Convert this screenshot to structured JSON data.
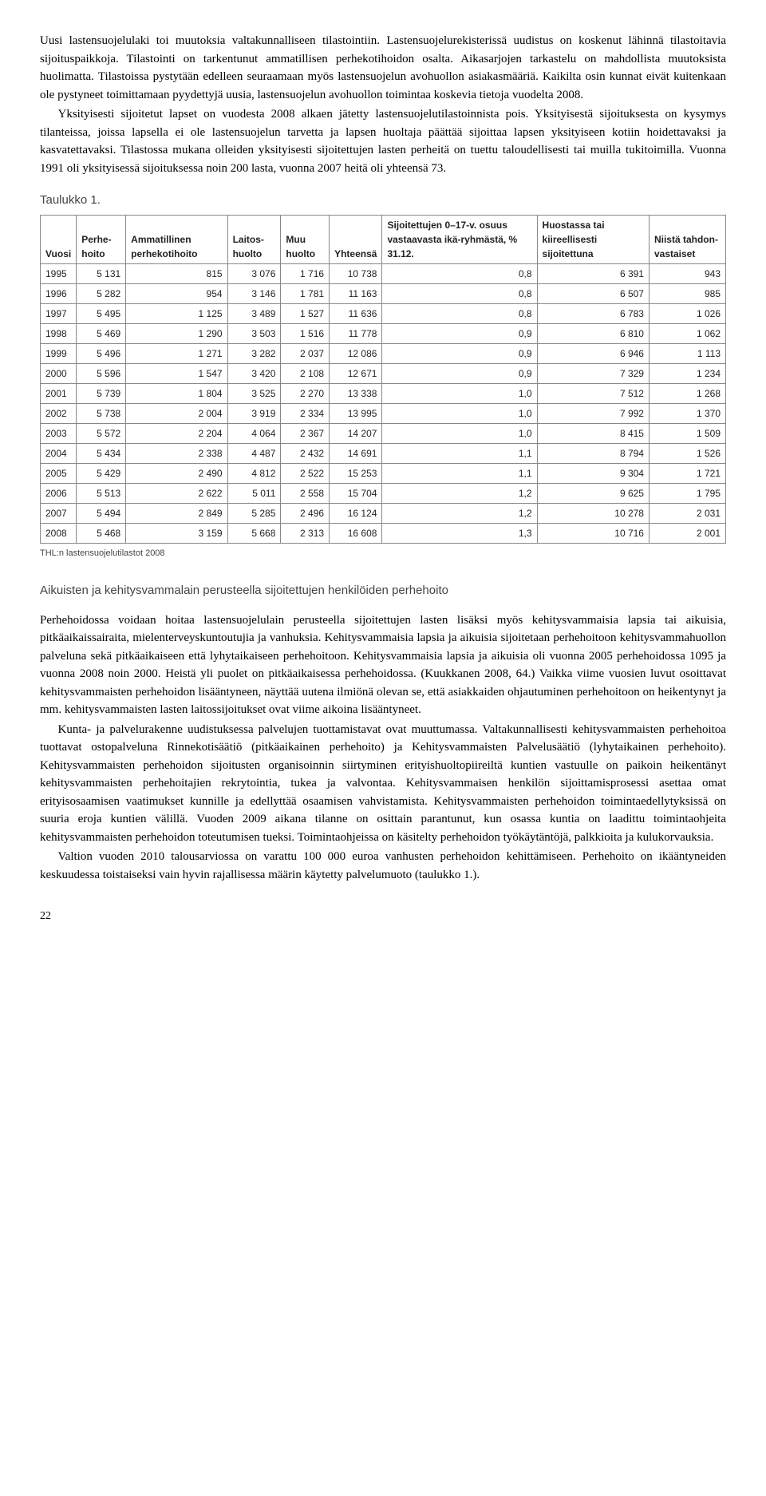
{
  "paragraphs": {
    "p1": "Uusi lastensuojelulaki toi muutoksia valtakunnalliseen tilastointiin. Lastensuojelurekisterissä uudistus on koskenut lähinnä tilastoitavia sijoituspaikkoja. Tilastointi on tarkentunut ammatillisen perhekotihoidon osalta. Aikasarjojen tarkastelu on mahdollista muutoksista huolimatta. Tilastoissa pystytään edelleen seuraamaan myös lastensuojelun avohuollon asiakasmääriä. Kaikilta osin kunnat eivät kuitenkaan ole pystyneet toimittamaan pyydettyjä uusia, lastensuojelun avohuollon toimintaa koskevia tietoja vuodelta 2008.",
    "p2": "Yksityisesti sijoitetut lapset on vuodesta 2008 alkaen jätetty lastensuojelutilastoinnista pois. Yksityisestä sijoituksesta on kysymys tilanteissa, joissa lapsella ei ole lastensuojelun tarvetta ja lapsen huoltaja päättää sijoittaa lapsen yksityiseen kotiin hoidettavaksi ja kasvatettavaksi. Tilastossa mukana olleiden yksityisesti sijoitettujen lasten perheitä on tuettu taloudellisesti tai muilla tukitoimilla. Vuonna 1991 oli yksityisessä sijoituksessa noin 200 lasta, vuonna 2007 heitä oli yhteensä 73.",
    "p3": "Perhehoidossa voidaan hoitaa lastensuojelulain perusteella sijoitettujen lasten lisäksi myös kehitysvammaisia lapsia tai aikuisia, pitkäaikaissairaita, mielenterveyskuntoutujia ja vanhuksia. Kehitysvammaisia lapsia ja aikuisia sijoitetaan perhehoitoon kehitysvammahuollon palveluna sekä pitkäaikaiseen että lyhytaikaiseen perhehoitoon. Kehitysvammaisia lapsia ja aikuisia oli vuonna 2005 perhehoidossa 1095 ja vuonna 2008 noin 2000. Heistä yli puolet on pitkäaikaisessa perhehoidossa. (Kuukkanen 2008, 64.) Vaikka viime vuosien luvut osoittavat kehitysvammaisten perhehoidon lisääntyneen, näyttää uutena ilmiönä olevan se, että asiakkaiden ohjautuminen perhehoitoon on heikentynyt ja mm. kehitysvammaisten lasten laitossijoitukset ovat viime aikoina lisääntyneet.",
    "p4": "Kunta- ja palvelurakenne uudistuksessa palvelujen tuottamistavat ovat muuttumassa. Valtakunnallisesti kehitysvammaisten perhehoitoa tuottavat ostopalveluna Rinnekotisäätiö (pitkäaikainen perhehoito) ja Kehitysvammaisten Palvelusäätiö (lyhytaikainen perhehoito). Kehitysvammaisten perhehoidon sijoitusten organisoinnin siirtyminen erityishuoltopiireiltä kuntien vastuulle on paikoin heikentänyt kehitysvammaisten perhehoitajien rekrytointia, tukea ja valvontaa. Kehitysvammaisen henkilön sijoittamisprosessi asettaa omat erityisosaamisen vaatimukset kunnille ja edellyttää osaamisen vahvistamista. Kehitysvammaisten perhehoidon toimintaedellytyksissä on suuria eroja kuntien välillä. Vuoden 2009 aikana tilanne on osittain parantunut, kun osassa kuntia on laadittu toimintaohjeita kehitysvammaisten perhehoidon toteutumisen tueksi. Toimintaohjeissa on käsitelty perhehoidon työkäytäntöjä, palkkioita ja kulukorvauksia.",
    "p5": "Valtion vuoden 2010 talousarviossa on varattu 100 000 euroa vanhusten perhehoidon kehittämiseen. Perhehoito on ikääntyneiden keskuudessa toistaiseksi vain hyvin rajallisessa määrin käytetty palvelumuoto (taulukko 1.)."
  },
  "table": {
    "title": "Taulukko 1.",
    "columns": [
      "Vuosi",
      "Perhe-hoito",
      "Ammatillinen perhekotihoito",
      "Laitos-huolto",
      "Muu huolto",
      "Yhteensä",
      "Sijoitettujen 0–17-v. osuus vastaavasta ikä-ryhmästä, % 31.12.",
      "Huostassa tai kiireellisesti sijoitettuna",
      "Niistä tahdon-vastaiset"
    ],
    "rows": [
      [
        "1995",
        "5 131",
        "815",
        "3 076",
        "1 716",
        "10 738",
        "0,8",
        "6 391",
        "943"
      ],
      [
        "1996",
        "5 282",
        "954",
        "3 146",
        "1 781",
        "11 163",
        "0,8",
        "6 507",
        "985"
      ],
      [
        "1997",
        "5 495",
        "1 125",
        "3 489",
        "1 527",
        "11 636",
        "0,8",
        "6 783",
        "1 026"
      ],
      [
        "1998",
        "5 469",
        "1 290",
        "3 503",
        "1 516",
        "11 778",
        "0,9",
        "6 810",
        "1 062"
      ],
      [
        "1999",
        "5 496",
        "1 271",
        "3 282",
        "2 037",
        "12 086",
        "0,9",
        "6 946",
        "1 113"
      ],
      [
        "2000",
        "5 596",
        "1 547",
        "3 420",
        "2 108",
        "12 671",
        "0,9",
        "7 329",
        "1 234"
      ],
      [
        "2001",
        "5 739",
        "1 804",
        "3 525",
        "2 270",
        "13 338",
        "1,0",
        "7 512",
        "1 268"
      ],
      [
        "2002",
        "5 738",
        "2 004",
        "3 919",
        "2 334",
        "13 995",
        "1,0",
        "7 992",
        "1 370"
      ],
      [
        "2003",
        "5 572",
        "2 204",
        "4 064",
        "2 367",
        "14 207",
        "1,0",
        "8 415",
        "1 509"
      ],
      [
        "2004",
        "5 434",
        "2 338",
        "4 487",
        "2 432",
        "14 691",
        "1,1",
        "8 794",
        "1 526"
      ],
      [
        "2005",
        "5 429",
        "2 490",
        "4 812",
        "2 522",
        "15 253",
        "1,1",
        "9 304",
        "1 721"
      ],
      [
        "2006",
        "5 513",
        "2 622",
        "5 011",
        "2 558",
        "15 704",
        "1,2",
        "9 625",
        "1 795"
      ],
      [
        "2007",
        "5 494",
        "2 849",
        "5 285",
        "2 496",
        "16 124",
        "1,2",
        "10 278",
        "2 031"
      ],
      [
        "2008",
        "5 468",
        "3 159",
        "5 668",
        "2 313",
        "16 608",
        "1,3",
        "10 716",
        "2 001"
      ]
    ],
    "footnote": "THL:n lastensuojelutilastot 2008"
  },
  "section_heading": "Aikuisten ja kehitysvammalain perusteella sijoitettujen henkilöiden perhehoito",
  "page_number": "22"
}
